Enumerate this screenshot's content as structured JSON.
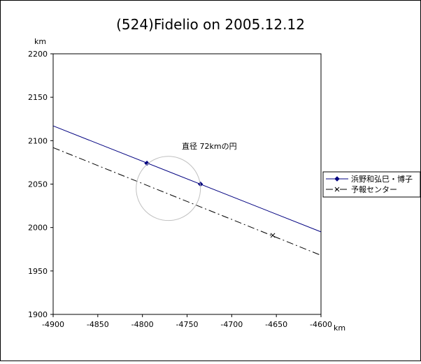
{
  "chart_data": {
    "type": "line",
    "title": "(524)Fidelio on 2005.12.12",
    "xunit": "km",
    "yunit": "km",
    "xlim": [
      -4900,
      -4600
    ],
    "ylim": [
      1900,
      2200
    ],
    "xticks": [
      -4900,
      -4850,
      -4800,
      -4750,
      -4700,
      -4650,
      -4600
    ],
    "yticks": [
      1900,
      1950,
      2000,
      2050,
      2100,
      2150,
      2200
    ],
    "grid": false,
    "legend_position": "right",
    "series": [
      {
        "name": "浜野和弘巳・博子",
        "color": "#000080",
        "line_style": "solid",
        "marker": "diamond",
        "line": [
          [
            -4900,
            2117
          ],
          [
            -4600,
            1995
          ]
        ],
        "points": [
          [
            -4795,
            2074
          ],
          [
            -4735,
            2050
          ]
        ]
      },
      {
        "name": "予報センター",
        "color": "#000000",
        "line_style": "dash-dot",
        "marker": "x",
        "line": [
          [
            -4900,
            2092
          ],
          [
            -4600,
            1968
          ]
        ],
        "points": [
          [
            -4654,
            1991
          ]
        ]
      }
    ],
    "circle": {
      "label": "直径 72kmの円",
      "center": [
        -4771,
        2045
      ],
      "diameter_km": 72,
      "color": "#c0c0c0"
    }
  }
}
